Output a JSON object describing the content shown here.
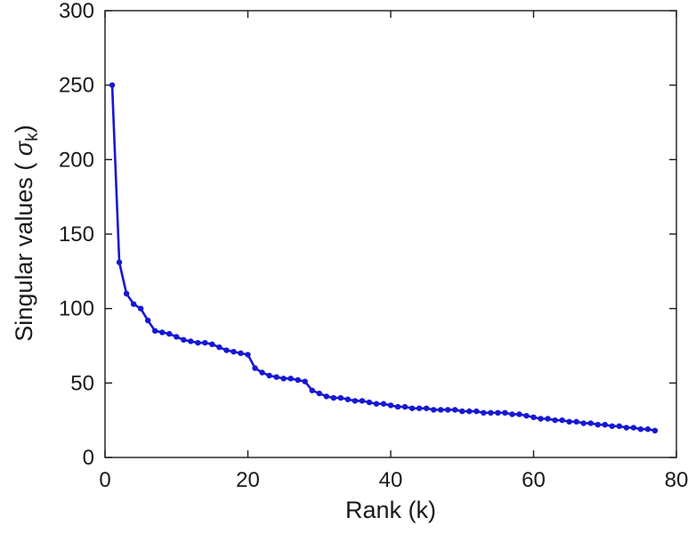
{
  "chart_data": {
    "type": "line",
    "title": "",
    "xlabel": "Rank (k)",
    "ylabel": "Singular values ( σ_k )",
    "ylabel_parts": {
      "prefix": "Singular values ( ",
      "symbol": "σ",
      "subscript": "k",
      "suffix": ")"
    },
    "xlim": [
      0,
      80
    ],
    "ylim": [
      0,
      300
    ],
    "x_ticks": [
      0,
      20,
      40,
      60,
      80
    ],
    "y_ticks": [
      0,
      50,
      100,
      150,
      200,
      250,
      300
    ],
    "grid": false,
    "legend": "none",
    "line_color": "#1717d4",
    "axis_color": "#1a1a1a",
    "marker": "filled-circle",
    "series": [
      {
        "name": "singular-values",
        "x": [
          1,
          2,
          3,
          4,
          5,
          6,
          7,
          8,
          9,
          10,
          11,
          12,
          13,
          14,
          15,
          16,
          17,
          18,
          19,
          20,
          21,
          22,
          23,
          24,
          25,
          26,
          27,
          28,
          29,
          30,
          31,
          32,
          33,
          34,
          35,
          36,
          37,
          38,
          39,
          40,
          41,
          42,
          43,
          44,
          45,
          46,
          47,
          48,
          49,
          50,
          51,
          52,
          53,
          54,
          55,
          56,
          57,
          58,
          59,
          60,
          61,
          62,
          63,
          64,
          65,
          66,
          67,
          68,
          69,
          70,
          71,
          72,
          73,
          74,
          75,
          76,
          77
        ],
        "y": [
          250,
          131,
          110,
          103,
          100,
          92,
          85,
          84,
          83,
          81,
          79,
          78,
          77,
          77,
          76,
          74,
          72,
          71,
          70,
          69,
          60,
          57,
          55,
          54,
          53,
          53,
          52,
          51,
          45,
          43,
          41,
          40,
          40,
          39,
          38,
          38,
          37,
          36,
          36,
          35,
          34,
          34,
          33,
          33,
          33,
          32,
          32,
          32,
          32,
          31,
          31,
          31,
          30,
          30,
          30,
          30,
          29,
          29,
          28,
          27,
          26,
          26,
          25,
          25,
          24,
          24,
          23,
          23,
          22,
          22,
          21,
          21,
          20,
          20,
          19,
          19,
          18
        ]
      }
    ]
  }
}
